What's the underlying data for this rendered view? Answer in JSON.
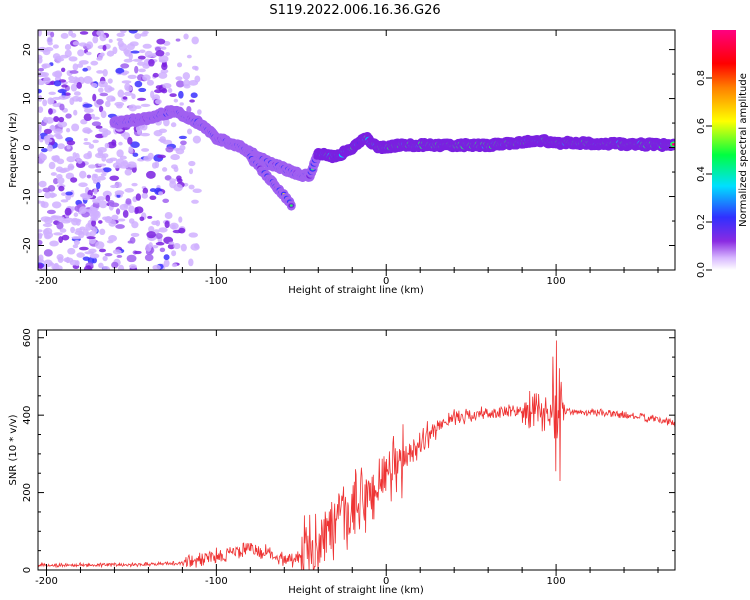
{
  "title": "S119.2022.006.16.36.G26",
  "chart_data": [
    {
      "type": "heatmap",
      "xlabel": "Height of straight line (km)",
      "ylabel": "Frequency (Hz)",
      "xlim": [
        -205,
        170
      ],
      "ylim": [
        -25,
        24
      ],
      "x_ticks": [
        -200,
        -100,
        0,
        100
      ],
      "y_ticks": [
        -20,
        -10,
        0,
        10,
        20
      ],
      "colorbar": {
        "label": "Normalized spectral amplitude",
        "range": [
          0,
          1
        ],
        "ticks": [
          "0.0",
          "0.2",
          "0.4",
          "0.6",
          "0.8"
        ],
        "colormap": "purple-blue-cyan-green-yellow-red-magenta"
      },
      "features": [
        {
          "name": "noise",
          "x_range": [
            -205,
            -110
          ],
          "y_range": [
            -25,
            24
          ],
          "amplitude": 0.15
        },
        {
          "name": "upper branch",
          "points": [
            [
              -160,
              5
            ],
            [
              -140,
              6
            ],
            [
              -125,
              7.5
            ],
            [
              -110,
              5
            ],
            [
              -100,
              2
            ],
            [
              -85,
              0
            ],
            [
              -70,
              -3
            ],
            [
              -55,
              -5
            ],
            [
              -45,
              -6
            ],
            [
              -40,
              -1
            ],
            [
              -30,
              -2
            ],
            [
              -20,
              0
            ],
            [
              -12,
              2
            ],
            [
              -5,
              0
            ],
            [
              10,
              0.5
            ],
            [
              60,
              0.5
            ],
            [
              80,
              1
            ],
            [
              90,
              1.5
            ],
            [
              100,
              1
            ],
            [
              170,
              0.5
            ]
          ]
        },
        {
          "name": "lower branch",
          "points": [
            [
              -80,
              -2
            ],
            [
              -70,
              -6
            ],
            [
              -62,
              -9
            ],
            [
              -55,
              -12
            ]
          ]
        }
      ]
    },
    {
      "type": "line",
      "xlabel": "Height of straight line (km)",
      "ylabel": "SNR (10 * v/v)",
      "xlim": [
        -205,
        170
      ],
      "ylim": [
        0,
        620
      ],
      "x_ticks": [
        -200,
        -100,
        0,
        100
      ],
      "y_ticks": [
        0,
        200,
        400,
        600
      ],
      "line_color": "#ee3333",
      "series_envelope": {
        "x": [
          -205,
          -150,
          -120,
          -100,
          -80,
          -60,
          -50,
          -40,
          -30,
          -20,
          -10,
          0,
          10,
          20,
          30,
          40,
          60,
          80,
          90,
          100,
          110,
          130,
          150,
          170
        ],
        "y": [
          12,
          14,
          18,
          35,
          55,
          30,
          30,
          80,
          110,
          150,
          190,
          240,
          280,
          330,
          370,
          395,
          405,
          410,
          405,
          410,
          410,
          405,
          395,
          380
        ]
      }
    }
  ]
}
